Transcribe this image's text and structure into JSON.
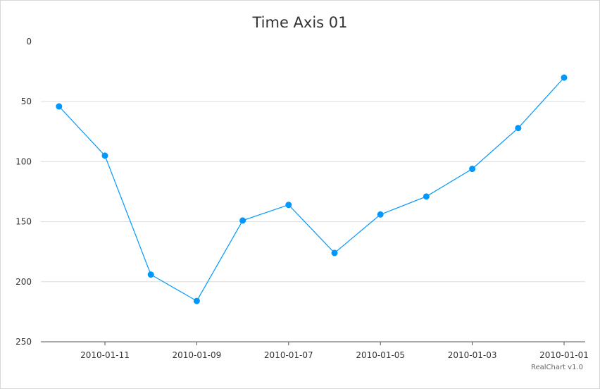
{
  "chart_data": {
    "type": "line",
    "title": "Time Axis 01",
    "credit": "RealChart v1.0",
    "x_axis": {
      "reversed": true,
      "tick_labels": [
        "2010-01-11",
        "2010-01-09",
        "2010-01-07",
        "2010-01-05",
        "2010-01-03",
        "2010-01-01"
      ],
      "tick_dates": [
        11,
        9,
        7,
        5,
        3,
        1
      ],
      "range": [
        "2010-01-01",
        "2010-01-12"
      ]
    },
    "y_axis": {
      "reversed": true,
      "ylim": [
        0,
        250
      ],
      "ticks": [
        0,
        50,
        100,
        150,
        200,
        250
      ],
      "grid": true
    },
    "series": [
      {
        "x": [
          "2010-01-01",
          "2010-01-02",
          "2010-01-03",
          "2010-01-04",
          "2010-01-05",
          "2010-01-06",
          "2010-01-07",
          "2010-01-08",
          "2010-01-09",
          "2010-01-10",
          "2010-01-11",
          "2010-01-12"
        ],
        "values": [
          30,
          72,
          106,
          129,
          144,
          176,
          136,
          149,
          216,
          194,
          95,
          54
        ],
        "color": "#0098ff"
      }
    ]
  }
}
